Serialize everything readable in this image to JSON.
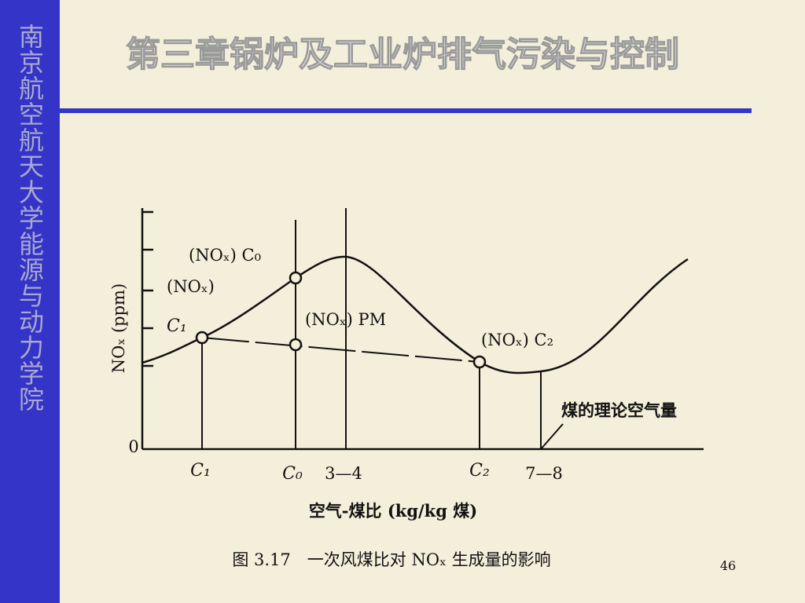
{
  "sidebar": {
    "text": "南京航空航天大学能源与动力学院"
  },
  "header": {
    "title": "第三章锅炉及工业炉排气污染与控制"
  },
  "figure": {
    "y_axis_label": "NOₓ (ppm)",
    "origin_label": "0",
    "annotations": [
      "(NOₓ) C₀",
      "(NOₓ)",
      "C₁",
      "(NOₓ) PM",
      "(NOₓ) C₂",
      "煤的理论空气量"
    ],
    "x_ticks": [
      "C₁",
      "C₀",
      "3—4",
      "C₂",
      "7—8"
    ],
    "x_axis_label": "空气-煤比 (kg/kg 煤)",
    "caption": "图 3.17　一次风煤比对 NOₓ 生成量的影响"
  },
  "footer": {
    "page_number": "46"
  }
}
